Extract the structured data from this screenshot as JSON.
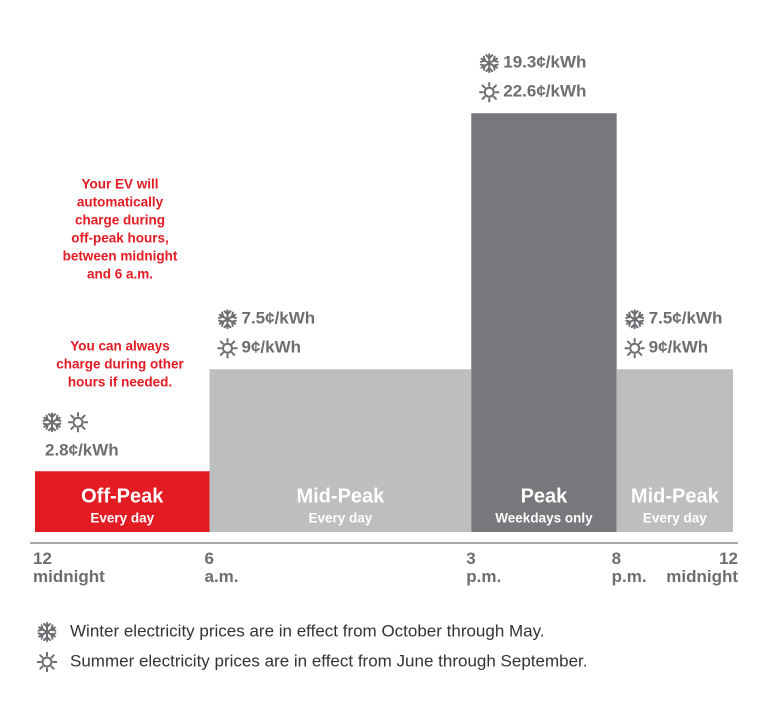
{
  "chart_data": {
    "type": "bar",
    "categories": [
      "Off-Peak",
      "Mid-Peak",
      "Peak",
      "Mid-Peak"
    ],
    "notes": [
      "Every day",
      "Every day",
      "Weekdays only",
      "Every day"
    ],
    "bins": [
      0,
      6,
      15,
      20,
      24
    ],
    "xlim": [
      0,
      24
    ],
    "xticks": [
      {
        "value": 0,
        "label": "12 midnight"
      },
      {
        "value": 6,
        "label": "6 a.m."
      },
      {
        "value": 15,
        "label": "3 p.m."
      },
      {
        "value": 20,
        "label": "8 p.m."
      },
      {
        "value": 24,
        "label": "12 midnight"
      }
    ],
    "colors": [
      "#e31b23",
      "#bcbec0",
      "#77787b",
      "#bcbec0"
    ],
    "series": [
      {
        "values": [
          2.8,
          7.5,
          19.3,
          7.5
        ],
        "value_labels": [
          "2.8¢/kWh",
          "7.5¢/kWh",
          "19.3¢/kWh",
          "7.5¢/kWh"
        ]
      },
      {
        "values": [
          2.8,
          9,
          22.6,
          9
        ],
        "value_labels": [
          null,
          "9¢/kWh",
          "22.6¢/kWh",
          "9¢/kWh"
        ]
      }
    ],
    "annotations": [
      [
        "Your EV will",
        "automatically",
        "charge during",
        "off-peak hours,",
        "between midnight",
        "and 6 a.m."
      ],
      [
        "You can always",
        "charge during other",
        "hours if needed."
      ]
    ],
    "footnotes": [
      "Winter electricity prices are in effect from October through May.",
      "Summer electricity prices are in effect from June through September."
    ]
  }
}
